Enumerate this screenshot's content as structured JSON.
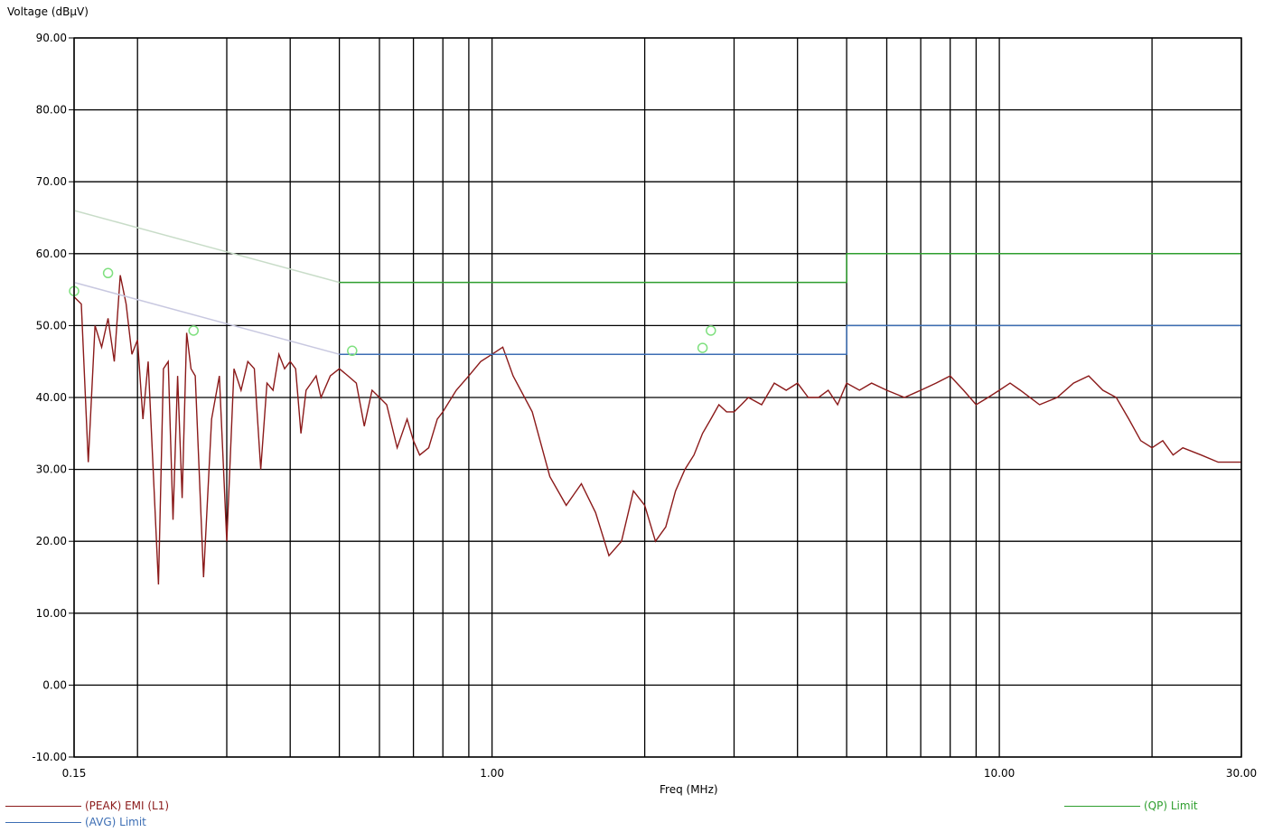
{
  "chart_data": {
    "type": "line",
    "ylabel": "Voltage (dBμV)",
    "xlabel": "Freq (MHz)",
    "x_scale": "log",
    "xlim": [
      0.15,
      30.0
    ],
    "ylim": [
      -10,
      90
    ],
    "grid": true,
    "y_ticks": [
      90,
      80,
      70,
      60,
      50,
      40,
      30,
      20,
      10,
      0,
      -10
    ],
    "y_tick_labels": [
      "90.00",
      "80.00",
      "70.00",
      "60.00",
      "50.00",
      "40.00",
      "30.00",
      "20.00",
      "10.00",
      "0.00",
      "-10.00"
    ],
    "x_tick_labels": [
      {
        "value": 0.15,
        "label": "0.15"
      },
      {
        "value": 1.0,
        "label": "1.00"
      },
      {
        "value": 10.0,
        "label": "10.00"
      },
      {
        "value": 30.0,
        "label": "30.00"
      }
    ],
    "x_gridlines": [
      0.15,
      0.2,
      0.3,
      0.4,
      0.5,
      0.6,
      0.7,
      0.8,
      0.9,
      1,
      2,
      3,
      4,
      5,
      6,
      7,
      8,
      9,
      10,
      20,
      30
    ],
    "series": [
      {
        "name": "(PEAK) EMI (L1)",
        "color": "#8b1a1a",
        "x": [
          0.15,
          0.155,
          0.16,
          0.165,
          0.17,
          0.175,
          0.18,
          0.185,
          0.19,
          0.195,
          0.2,
          0.205,
          0.21,
          0.22,
          0.225,
          0.23,
          0.235,
          0.24,
          0.245,
          0.25,
          0.255,
          0.26,
          0.27,
          0.28,
          0.29,
          0.3,
          0.31,
          0.32,
          0.33,
          0.34,
          0.35,
          0.36,
          0.37,
          0.38,
          0.385,
          0.39,
          0.4,
          0.41,
          0.42,
          0.43,
          0.44,
          0.45,
          0.46,
          0.48,
          0.5,
          0.52,
          0.54,
          0.56,
          0.58,
          0.6,
          0.62,
          0.65,
          0.68,
          0.7,
          0.72,
          0.75,
          0.78,
          0.8,
          0.85,
          0.9,
          0.95,
          1.0,
          1.05,
          1.1,
          1.2,
          1.3,
          1.4,
          1.5,
          1.6,
          1.7,
          1.8,
          1.9,
          2.0,
          2.1,
          2.2,
          2.3,
          2.4,
          2.45,
          2.5,
          2.6,
          2.7,
          2.8,
          2.9,
          3.0,
          3.1,
          3.2,
          3.4,
          3.6,
          3.8,
          4.0,
          4.2,
          4.4,
          4.6,
          4.8,
          5.0,
          5.3,
          5.6,
          6.0,
          6.5,
          7.0,
          7.5,
          8.0,
          8.5,
          9.0,
          9.5,
          10.0,
          10.5,
          11.0,
          12.0,
          13.0,
          14.0,
          15.0,
          16.0,
          17.0,
          18.0,
          19.0,
          20.0,
          21.0,
          22.0,
          23.0,
          25.0,
          27.0,
          30.0
        ],
        "y": [
          54,
          53,
          31,
          50,
          47,
          51,
          45,
          57,
          53,
          46,
          48,
          37,
          45,
          14,
          44,
          45,
          23,
          43,
          26,
          49,
          44,
          43,
          15,
          37,
          43,
          20,
          44,
          41,
          45,
          44,
          30,
          42,
          41,
          46,
          45,
          44,
          45,
          44,
          35,
          41,
          42,
          43,
          40,
          43,
          44,
          43,
          42,
          36,
          41,
          40,
          39,
          33,
          37,
          34,
          32,
          33,
          37,
          38,
          41,
          43,
          45,
          46,
          47,
          43,
          38,
          29,
          25,
          28,
          24,
          18,
          20,
          27,
          25,
          20,
          22,
          27,
          30,
          31,
          32,
          35,
          37,
          39,
          38,
          38,
          39,
          40,
          39,
          42,
          41,
          42,
          40,
          40,
          41,
          39,
          42,
          41,
          42,
          41,
          40,
          41,
          42,
          43,
          41,
          39,
          40,
          41,
          42,
          41,
          39,
          40,
          42,
          43,
          41,
          40,
          37,
          34,
          33,
          34,
          32,
          33,
          32,
          31,
          31
        ]
      },
      {
        "name": "(AVG) Limit",
        "color": "#3c6eb4",
        "x": [
          0.5,
          5.0,
          5.0,
          30.0
        ],
        "y": [
          46,
          46,
          50,
          50
        ]
      },
      {
        "name": "(QP) Limit",
        "color": "#2e9e2e",
        "x": [
          0.5,
          5.0,
          5.0,
          30.0
        ],
        "y": [
          56,
          56,
          60,
          60
        ]
      },
      {
        "color": "#c8c8e0",
        "x": [
          0.15,
          0.5
        ],
        "y": [
          56,
          46
        ]
      },
      {
        "color": "#c8dcc8",
        "x": [
          0.15,
          0.5
        ],
        "y": [
          66,
          56
        ]
      }
    ],
    "markers": {
      "color": "#7fe07f",
      "points": [
        [
          0.15,
          54.8
        ],
        [
          0.175,
          57.3
        ],
        [
          0.258,
          49.3
        ],
        [
          0.53,
          46.5
        ],
        [
          2.6,
          46.9
        ],
        [
          2.7,
          49.3
        ]
      ]
    },
    "legend": {
      "peak": "(PEAK) EMI (L1)",
      "avg": "(AVG) Limit",
      "qp": "(QP) Limit"
    }
  }
}
